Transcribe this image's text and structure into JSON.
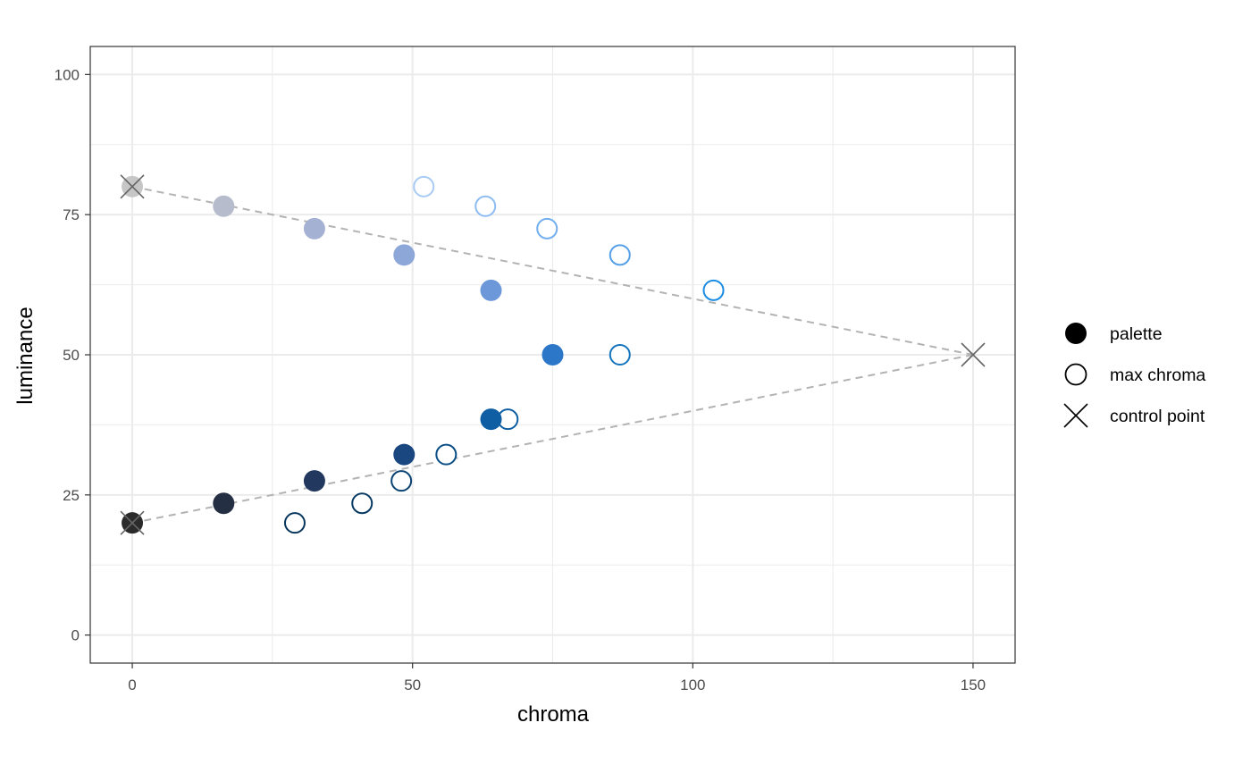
{
  "chart_data": {
    "type": "scatter",
    "title": "",
    "xlabel": "chroma",
    "ylabel": "luminance",
    "xlim": [
      -7.5,
      157.5
    ],
    "ylim": [
      -5,
      105
    ],
    "x_ticks": [
      0,
      50,
      100,
      150
    ],
    "y_ticks": [
      0,
      25,
      50,
      75,
      100
    ],
    "x_tick_labels": [
      "0",
      "50",
      "100",
      "150"
    ],
    "y_tick_labels": [
      "0",
      "25",
      "50",
      "75",
      "100"
    ],
    "grid": true,
    "legend": {
      "placement": "right",
      "entries": [
        {
          "label": "palette",
          "shape": "filled-circle"
        },
        {
          "label": "max chroma",
          "shape": "open-circle"
        },
        {
          "label": "control point",
          "shape": "cross"
        }
      ]
    },
    "control_path": [
      {
        "x": 0,
        "y": 80
      },
      {
        "x": 150,
        "y": 50
      },
      {
        "x": 0,
        "y": 20
      }
    ],
    "series": [
      {
        "name": "max chroma",
        "points": [
          {
            "x": 52,
            "y": 80,
            "color": "#a7cbf5"
          },
          {
            "x": 63,
            "y": 76.5,
            "color": "#8dbcf2"
          },
          {
            "x": 74,
            "y": 72.5,
            "color": "#72aeee"
          },
          {
            "x": 87,
            "y": 67.8,
            "color": "#559fe8"
          },
          {
            "x": 103.7,
            "y": 61.5,
            "color": "#1a8ce3"
          },
          {
            "x": 87,
            "y": 50,
            "color": "#1473bd"
          },
          {
            "x": 67,
            "y": 38.5,
            "color": "#0d5ea2"
          },
          {
            "x": 56,
            "y": 32.2,
            "color": "#0b4f86"
          },
          {
            "x": 48,
            "y": 27.5,
            "color": "#0a4373"
          },
          {
            "x": 41,
            "y": 23.5,
            "color": "#083a64"
          },
          {
            "x": 29,
            "y": 20,
            "color": "#08365c"
          }
        ]
      },
      {
        "name": "palette",
        "points": [
          {
            "x": 0,
            "y": 80,
            "color": "#c6c6c6"
          },
          {
            "x": 16.3,
            "y": 76.5,
            "color": "#b7bccd"
          },
          {
            "x": 32.5,
            "y": 72.5,
            "color": "#a5b1d2"
          },
          {
            "x": 48.5,
            "y": 67.8,
            "color": "#8ea7d9"
          },
          {
            "x": 64,
            "y": 61.5,
            "color": "#6c98da"
          },
          {
            "x": 75,
            "y": 50,
            "color": "#2d77c9"
          },
          {
            "x": 64,
            "y": 38.5,
            "color": "#0f5ea3"
          },
          {
            "x": 48.5,
            "y": 32.2,
            "color": "#1b4780"
          },
          {
            "x": 32.5,
            "y": 27.5,
            "color": "#23385e"
          },
          {
            "x": 16.3,
            "y": 23.5,
            "color": "#252f44"
          },
          {
            "x": 0,
            "y": 20,
            "color": "#2b2b2b"
          }
        ]
      },
      {
        "name": "control point",
        "points": [
          {
            "x": 0,
            "y": 80
          },
          {
            "x": 150,
            "y": 50
          },
          {
            "x": 0,
            "y": 20
          }
        ]
      }
    ]
  }
}
